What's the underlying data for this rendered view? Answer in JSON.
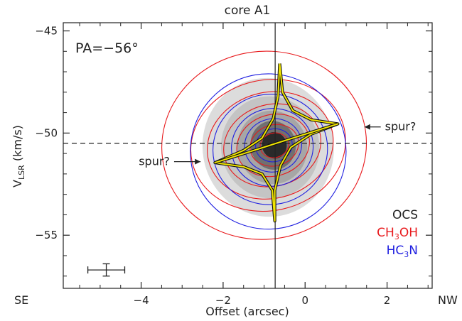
{
  "chart_data": {
    "type": "contour",
    "title": "core A1",
    "xlabel": "Offset (arcsec)",
    "ylabel_main": "V",
    "ylabel_sub": "LSR",
    "ylabel_unit": " (km/s)",
    "xlim": [
      -5.9,
      3.1
    ],
    "ylim": [
      -57.6,
      -44.6
    ],
    "x_ticks": [
      -4,
      -2,
      0,
      2
    ],
    "y_ticks": [
      -55,
      -50,
      -45
    ],
    "x_tick_labels": [
      "−4",
      "−2",
      "0",
      "2"
    ],
    "y_tick_labels": [
      "−55",
      "−50",
      "−45"
    ],
    "corner_labels": {
      "left": "SE",
      "right": "NW"
    },
    "pa_label": "PA=−56°",
    "reference_lines": {
      "vertical_x": -0.73,
      "horizontal_y": -50.5
    },
    "annotations": [
      {
        "text": "spur?",
        "side": "left",
        "x": -3.3,
        "y": -51.4,
        "arrow_to_x": -2.55
      },
      {
        "text": "spur?",
        "side": "right",
        "x": 1.95,
        "y": -49.7,
        "arrow_to_x": 1.45
      }
    ],
    "legend": {
      "position": "bottom-right",
      "entries": [
        {
          "main": "OCS",
          "color": "#1a1a1a"
        },
        {
          "main": "CH",
          "sub": "3",
          "rest": "OH",
          "color": "#e8191c"
        },
        {
          "main": "HC",
          "sub": "3",
          "rest": "N",
          "color": "#1f1fe0"
        }
      ]
    },
    "errorbar": {
      "x": -4.85,
      "y": -56.7,
      "xerr": 0.45,
      "yerr": 0.3
    },
    "series_colors": {
      "ocs": "#9a9a9a",
      "ch3oh": "#e8191c",
      "hc3n": "#1f1fe0",
      "model": "#f2e600"
    },
    "model_curve": {
      "points": [
        [
          -0.62,
          -46.6
        ],
        [
          -0.66,
          -48.2
        ],
        [
          -0.78,
          -49.3
        ],
        [
          -1.05,
          -50.25
        ],
        [
          -1.5,
          -50.85
        ],
        [
          -2.2,
          -51.45
        ],
        [
          -1.5,
          -51.65
        ],
        [
          -1.05,
          -52.0
        ],
        [
          -0.8,
          -52.8
        ],
        [
          -0.74,
          -54.3
        ],
        [
          -0.74,
          -52.8
        ],
        [
          -0.6,
          -51.6
        ],
        [
          -0.35,
          -50.7
        ],
        [
          0.15,
          -50.05
        ],
        [
          0.8,
          -49.55
        ],
        [
          0.15,
          -49.35
        ],
        [
          -0.3,
          -48.9
        ],
        [
          -0.55,
          -48.0
        ],
        [
          -0.62,
          -46.6
        ]
      ],
      "diagonal": [
        [
          -2.2,
          -51.45
        ],
        [
          0.8,
          -49.55
        ]
      ]
    },
    "contours": {
      "ch3oh": [
        {
          "cx": -1.0,
          "cy": -50.6,
          "rx": 2.5,
          "ry": 4.6,
          "rot": -8
        },
        {
          "cx": -0.9,
          "cy": -50.6,
          "rx": 1.9,
          "ry": 3.2,
          "rot": -12
        },
        {
          "cx": -0.85,
          "cy": -50.6,
          "rx": 1.55,
          "ry": 2.6,
          "rot": -14
        },
        {
          "cx": -0.8,
          "cy": -50.6,
          "rx": 1.2,
          "ry": 2.0,
          "rot": -16
        },
        {
          "cx": -0.78,
          "cy": -50.6,
          "rx": 0.9,
          "ry": 1.5,
          "rot": -18
        },
        {
          "cx": -0.75,
          "cy": -50.6,
          "rx": 0.6,
          "ry": 1.0,
          "rot": -18
        },
        {
          "cx": -0.75,
          "cy": -50.6,
          "rx": 0.35,
          "ry": 0.6,
          "rot": -15
        }
      ],
      "hc3n": [
        {
          "cx": -0.9,
          "cy": -50.9,
          "rx": 1.9,
          "ry": 3.8,
          "rot": -10
        },
        {
          "cx": -0.85,
          "cy": -50.8,
          "rx": 1.4,
          "ry": 2.7,
          "rot": -12
        },
        {
          "cx": -0.8,
          "cy": -50.7,
          "rx": 1.0,
          "ry": 1.9,
          "rot": -14
        },
        {
          "cx": -0.78,
          "cy": -50.6,
          "rx": 0.7,
          "ry": 1.3,
          "rot": -15
        },
        {
          "cx": -0.76,
          "cy": -50.6,
          "rx": 0.45,
          "ry": 0.8,
          "rot": -15
        }
      ],
      "ocs": [
        {
          "cx": -0.9,
          "cy": -50.7,
          "rx": 1.6,
          "ry": 3.4,
          "rot": -10,
          "shade": "#dcdcdc"
        },
        {
          "cx": -0.85,
          "cy": -50.7,
          "rx": 1.2,
          "ry": 2.5,
          "rot": -12,
          "shade": "#c4c4c4"
        },
        {
          "cx": -0.8,
          "cy": -50.7,
          "rx": 0.85,
          "ry": 1.8,
          "rot": -14,
          "shade": "#a6a6a6"
        },
        {
          "cx": -0.78,
          "cy": -50.6,
          "rx": 0.55,
          "ry": 1.2,
          "rot": -14,
          "shade": "#707070"
        },
        {
          "cx": -0.75,
          "cy": -50.6,
          "rx": 0.3,
          "ry": 0.65,
          "rot": -14,
          "shade": "#2a2a2a"
        }
      ]
    }
  }
}
